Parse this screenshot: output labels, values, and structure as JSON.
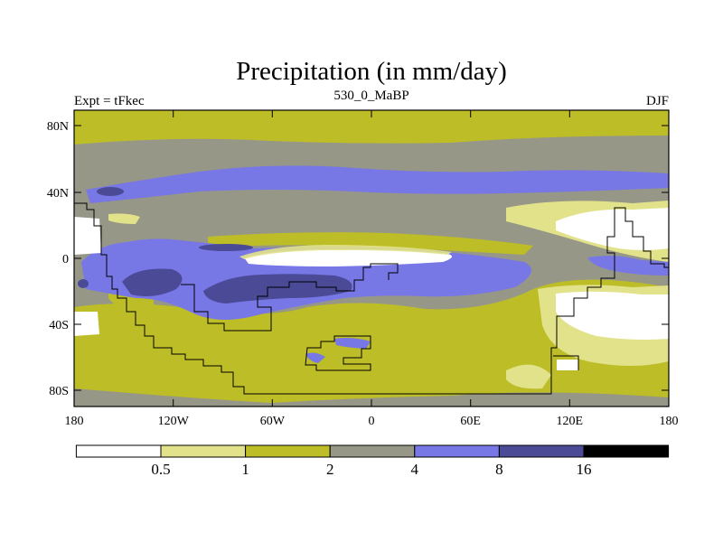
{
  "title": "Precipitation (in mm/day)",
  "left_label": "Expt = tFkec",
  "center_label": "530_0_MaBP",
  "right_label": "DJF",
  "y_ticks": [
    "80N",
    "40N",
    "0",
    "40S",
    "80S"
  ],
  "x_ticks": [
    "180",
    "120W",
    "60W",
    "0",
    "60E",
    "120E",
    "180"
  ],
  "colorbar": {
    "colors": [
      "#ffffff",
      "#e2e28a",
      "#bdbd27",
      "#979787",
      "#7777e6",
      "#4a4a96",
      "#000000"
    ],
    "labels": [
      "0.5",
      "1",
      "2",
      "4",
      "8",
      "16"
    ]
  }
}
